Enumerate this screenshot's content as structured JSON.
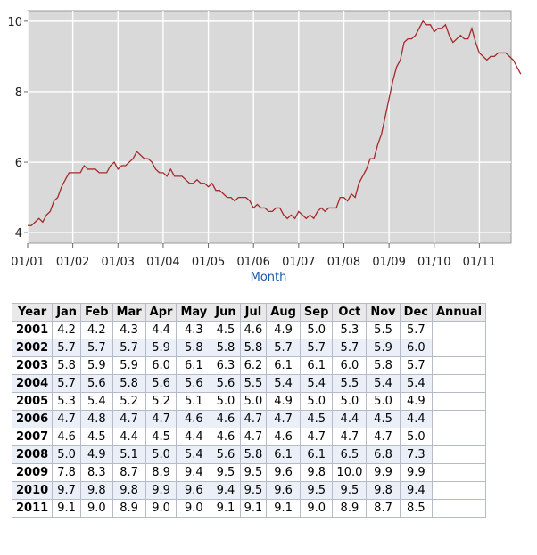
{
  "chart_data": {
    "type": "line",
    "x_tick_labels": [
      "01/01",
      "01/02",
      "01/03",
      "01/04",
      "01/05",
      "01/06",
      "01/07",
      "01/08",
      "01/09",
      "01/10",
      "01/11"
    ],
    "y_ticks": [
      4,
      6,
      8,
      10
    ],
    "ylim": [
      3.7,
      10.3
    ],
    "xlabel": "Month",
    "ylabel": "",
    "grid": true,
    "series_color": "#a52a2a",
    "series": [
      {
        "values": [
          4.2,
          4.2,
          4.3,
          4.4,
          4.3,
          4.5,
          4.6,
          4.9,
          5.0,
          5.3,
          5.5,
          5.7,
          5.7,
          5.7,
          5.7,
          5.9,
          5.8,
          5.8,
          5.8,
          5.7,
          5.7,
          5.7,
          5.9,
          6.0,
          5.8,
          5.9,
          5.9,
          6.0,
          6.1,
          6.3,
          6.2,
          6.1,
          6.1,
          6.0,
          5.8,
          5.7,
          5.7,
          5.6,
          5.8,
          5.6,
          5.6,
          5.6,
          5.5,
          5.4,
          5.4,
          5.5,
          5.4,
          5.4,
          5.3,
          5.4,
          5.2,
          5.2,
          5.1,
          5.0,
          5.0,
          4.9,
          5.0,
          5.0,
          5.0,
          4.9,
          4.7,
          4.8,
          4.7,
          4.7,
          4.6,
          4.6,
          4.7,
          4.7,
          4.5,
          4.4,
          4.5,
          4.4,
          4.6,
          4.5,
          4.4,
          4.5,
          4.4,
          4.6,
          4.7,
          4.6,
          4.7,
          4.7,
          4.7,
          5.0,
          5.0,
          4.9,
          5.1,
          5.0,
          5.4,
          5.6,
          5.8,
          6.1,
          6.1,
          6.5,
          6.8,
          7.3,
          7.8,
          8.3,
          8.7,
          8.9,
          9.4,
          9.5,
          9.5,
          9.6,
          9.8,
          10.0,
          9.9,
          9.9,
          9.7,
          9.8,
          9.8,
          9.9,
          9.6,
          9.4,
          9.5,
          9.6,
          9.5,
          9.5,
          9.8,
          9.4,
          9.1,
          9.0,
          8.9,
          9.0,
          9.0,
          9.1,
          9.1,
          9.1,
          9.0,
          8.9,
          8.7,
          8.5
        ]
      }
    ]
  },
  "table": {
    "columns": [
      "Year",
      "Jan",
      "Feb",
      "Mar",
      "Apr",
      "May",
      "Jun",
      "Jul",
      "Aug",
      "Sep",
      "Oct",
      "Nov",
      "Dec",
      "Annual"
    ],
    "rows": [
      {
        "year": "2001",
        "values": [
          "4.2",
          "4.2",
          "4.3",
          "4.4",
          "4.3",
          "4.5",
          "4.6",
          "4.9",
          "5.0",
          "5.3",
          "5.5",
          "5.7"
        ],
        "annual": ""
      },
      {
        "year": "2002",
        "values": [
          "5.7",
          "5.7",
          "5.7",
          "5.9",
          "5.8",
          "5.8",
          "5.8",
          "5.7",
          "5.7",
          "5.7",
          "5.9",
          "6.0"
        ],
        "annual": ""
      },
      {
        "year": "2003",
        "values": [
          "5.8",
          "5.9",
          "5.9",
          "6.0",
          "6.1",
          "6.3",
          "6.2",
          "6.1",
          "6.1",
          "6.0",
          "5.8",
          "5.7"
        ],
        "annual": ""
      },
      {
        "year": "2004",
        "values": [
          "5.7",
          "5.6",
          "5.8",
          "5.6",
          "5.6",
          "5.6",
          "5.5",
          "5.4",
          "5.4",
          "5.5",
          "5.4",
          "5.4"
        ],
        "annual": ""
      },
      {
        "year": "2005",
        "values": [
          "5.3",
          "5.4",
          "5.2",
          "5.2",
          "5.1",
          "5.0",
          "5.0",
          "4.9",
          "5.0",
          "5.0",
          "5.0",
          "4.9"
        ],
        "annual": ""
      },
      {
        "year": "2006",
        "values": [
          "4.7",
          "4.8",
          "4.7",
          "4.7",
          "4.6",
          "4.6",
          "4.7",
          "4.7",
          "4.5",
          "4.4",
          "4.5",
          "4.4"
        ],
        "annual": ""
      },
      {
        "year": "2007",
        "values": [
          "4.6",
          "4.5",
          "4.4",
          "4.5",
          "4.4",
          "4.6",
          "4.7",
          "4.6",
          "4.7",
          "4.7",
          "4.7",
          "5.0"
        ],
        "annual": ""
      },
      {
        "year": "2008",
        "values": [
          "5.0",
          "4.9",
          "5.1",
          "5.0",
          "5.4",
          "5.6",
          "5.8",
          "6.1",
          "6.1",
          "6.5",
          "6.8",
          "7.3"
        ],
        "annual": ""
      },
      {
        "year": "2009",
        "values": [
          "7.8",
          "8.3",
          "8.7",
          "8.9",
          "9.4",
          "9.5",
          "9.5",
          "9.6",
          "9.8",
          "10.0",
          "9.9",
          "9.9"
        ],
        "annual": ""
      },
      {
        "year": "2010",
        "values": [
          "9.7",
          "9.8",
          "9.8",
          "9.9",
          "9.6",
          "9.4",
          "9.5",
          "9.6",
          "9.5",
          "9.5",
          "9.8",
          "9.4"
        ],
        "annual": ""
      },
      {
        "year": "2011",
        "values": [
          "9.1",
          "9.0",
          "8.9",
          "9.0",
          "9.0",
          "9.1",
          "9.1",
          "9.1",
          "9.0",
          "8.9",
          "8.7",
          "8.5"
        ],
        "annual": ""
      }
    ]
  }
}
